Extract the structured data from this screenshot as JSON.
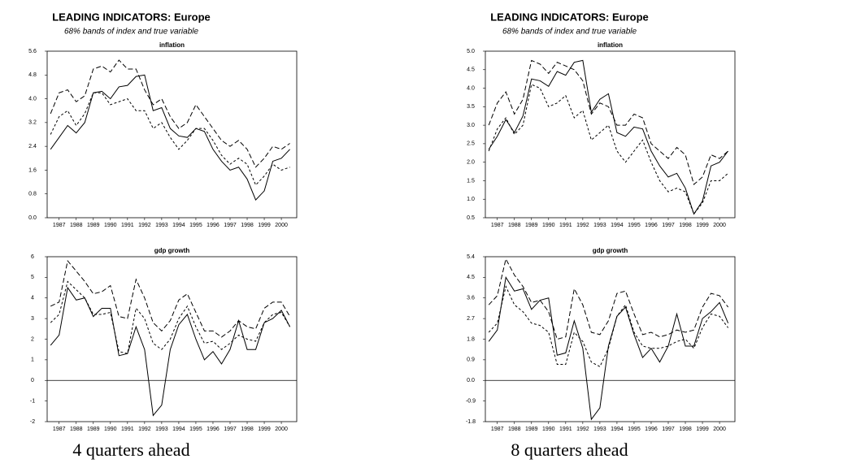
{
  "panels": [
    {
      "title": "LEADING INDICATORS: Europe",
      "subtitle": "68% bands of index and true variable",
      "caption": "4 quarters ahead"
    },
    {
      "title": "LEADING INDICATORS: Europe",
      "subtitle": "68% bands of index and true variable",
      "caption": "8 quarters ahead"
    }
  ],
  "chart_data": [
    {
      "type": "line",
      "title": "inflation",
      "x": [
        1986.5,
        1987,
        1987.5,
        1988,
        1988.5,
        1989,
        1989.5,
        1990,
        1990.5,
        1991,
        1991.5,
        1992,
        1992.5,
        1993,
        1993.5,
        1994,
        1994.5,
        1995,
        1995.5,
        1996,
        1996.5,
        1997,
        1997.5,
        1998,
        1998.5,
        1999,
        1999.5,
        2000,
        2000.5
      ],
      "xlim": [
        1986.3,
        2000.9
      ],
      "xticks": [
        1987,
        1988,
        1989,
        1990,
        1991,
        1992,
        1993,
        1994,
        1995,
        1996,
        1997,
        1998,
        1999,
        2000
      ],
      "ylim": [
        0,
        5.6
      ],
      "yticks": [
        {
          "value": 0,
          "label": "0.0"
        },
        0.8,
        1.6,
        2.4,
        3.2,
        {
          "value": 4,
          "label": "4.0"
        },
        4.8,
        5.6
      ],
      "series": [
        {
          "color": "#000000",
          "dash": "solid",
          "values": [
            2.3,
            2.7,
            3.1,
            2.85,
            3.2,
            4.2,
            4.25,
            4.0,
            4.4,
            4.45,
            4.75,
            4.8,
            3.6,
            3.7,
            3.0,
            2.75,
            2.7,
            3.0,
            2.9,
            2.3,
            1.9,
            1.6,
            1.7,
            1.3,
            0.6,
            0.9,
            1.9,
            2.0,
            2.3
          ]
        },
        {
          "color": "#000000",
          "dash": "long",
          "values": [
            3.5,
            4.2,
            4.3,
            3.9,
            4.1,
            5.0,
            5.1,
            4.9,
            5.3,
            5.0,
            5.0,
            4.3,
            3.8,
            4.0,
            3.4,
            3.0,
            3.2,
            3.8,
            3.4,
            3.0,
            2.6,
            2.4,
            2.6,
            2.3,
            1.7,
            2.0,
            2.4,
            2.3,
            2.5
          ]
        },
        {
          "color": "#000000",
          "dash": "short",
          "values": [
            2.8,
            3.4,
            3.6,
            3.1,
            3.5,
            4.2,
            4.2,
            3.8,
            3.9,
            4.0,
            3.6,
            3.6,
            3.0,
            3.2,
            2.7,
            2.3,
            2.6,
            3.0,
            3.0,
            2.6,
            2.1,
            1.8,
            2.0,
            1.8,
            1.1,
            1.4,
            1.8,
            1.6,
            1.7
          ]
        }
      ]
    },
    {
      "type": "line",
      "title": "gdp growth",
      "x": [
        1986.5,
        1987,
        1987.5,
        1988,
        1988.5,
        1989,
        1989.5,
        1990,
        1990.5,
        1991,
        1991.5,
        1992,
        1992.5,
        1993,
        1993.5,
        1994,
        1994.5,
        1995,
        1995.5,
        1996,
        1996.5,
        1997,
        1997.5,
        1998,
        1998.5,
        1999,
        1999.5,
        2000,
        2000.5
      ],
      "xlim": [
        1986.3,
        2000.9
      ],
      "xticks": [
        1987,
        1988,
        1989,
        1990,
        1991,
        1992,
        1993,
        1994,
        1995,
        1996,
        1997,
        1998,
        1999,
        2000
      ],
      "ylim": [
        -2,
        6
      ],
      "yticks": [
        -2,
        -1,
        0,
        1,
        2,
        3,
        4,
        5,
        6
      ],
      "series": [
        {
          "color": "#000000",
          "dash": "solid",
          "values": [
            1.7,
            2.2,
            4.5,
            3.9,
            4.0,
            3.1,
            3.5,
            3.5,
            1.2,
            1.3,
            2.6,
            1.5,
            -1.7,
            -1.2,
            1.5,
            2.7,
            3.2,
            2.0,
            1.0,
            1.4,
            0.8,
            1.5,
            2.9,
            1.5,
            1.5,
            2.8,
            3.0,
            3.4,
            2.6
          ]
        },
        {
          "color": "#000000",
          "dash": "long",
          "values": [
            3.6,
            3.8,
            5.8,
            5.3,
            4.8,
            4.2,
            4.3,
            4.6,
            3.1,
            3.0,
            4.9,
            4.0,
            2.8,
            2.4,
            2.9,
            3.9,
            4.2,
            3.3,
            2.4,
            2.4,
            2.1,
            2.4,
            2.9,
            2.6,
            2.5,
            3.5,
            3.8,
            3.8,
            3.1
          ]
        },
        {
          "color": "#000000",
          "dash": "short",
          "values": [
            2.8,
            3.2,
            4.8,
            4.4,
            4.0,
            3.2,
            3.2,
            3.3,
            1.4,
            1.3,
            3.5,
            3.0,
            1.8,
            1.5,
            2.0,
            3.0,
            3.6,
            2.6,
            1.8,
            1.9,
            1.5,
            1.8,
            2.2,
            2.0,
            1.9,
            2.8,
            3.2,
            3.3,
            2.6
          ]
        }
      ]
    },
    {
      "type": "line",
      "title": "inflation",
      "x": [
        1986.5,
        1987,
        1987.5,
        1988,
        1988.5,
        1989,
        1989.5,
        1990,
        1990.5,
        1991,
        1991.5,
        1992,
        1992.5,
        1993,
        1993.5,
        1994,
        1994.5,
        1995,
        1995.5,
        1996,
        1996.5,
        1997,
        1997.5,
        1998,
        1998.5,
        1999,
        1999.5,
        2000,
        2000.5
      ],
      "xlim": [
        1986.3,
        2000.9
      ],
      "xticks": [
        1987,
        1988,
        1989,
        1990,
        1991,
        1992,
        1993,
        1994,
        1995,
        1996,
        1997,
        1998,
        1999,
        2000
      ],
      "ylim": [
        0.5,
        5.0
      ],
      "yticks": [
        0.5,
        {
          "value": 1,
          "label": "1.0"
        },
        1.5,
        {
          "value": 2,
          "label": "2.0"
        },
        2.5,
        {
          "value": 3,
          "label": "3.0"
        },
        3.5,
        {
          "value": 4,
          "label": "4.0"
        },
        4.5,
        {
          "value": 5,
          "label": "5.0"
        }
      ],
      "series": [
        {
          "color": "#000000",
          "dash": "solid",
          "values": [
            2.35,
            2.7,
            3.15,
            2.8,
            3.25,
            4.25,
            4.2,
            4.05,
            4.45,
            4.35,
            4.7,
            4.75,
            3.35,
            3.7,
            3.85,
            2.8,
            2.7,
            2.95,
            2.9,
            2.3,
            1.9,
            1.6,
            1.7,
            1.3,
            0.6,
            0.95,
            1.9,
            2.0,
            2.3
          ]
        },
        {
          "color": "#000000",
          "dash": "long",
          "values": [
            3.0,
            3.6,
            3.9,
            3.3,
            3.7,
            4.75,
            4.65,
            4.4,
            4.7,
            4.6,
            4.5,
            4.2,
            3.3,
            3.6,
            3.5,
            3.0,
            3.0,
            3.3,
            3.2,
            2.5,
            2.3,
            2.1,
            2.4,
            2.2,
            1.4,
            1.6,
            2.2,
            2.1,
            2.3
          ]
        },
        {
          "color": "#000000",
          "dash": "short",
          "values": [
            2.3,
            2.9,
            3.2,
            2.75,
            3.0,
            4.1,
            4.0,
            3.5,
            3.6,
            3.8,
            3.2,
            3.4,
            2.6,
            2.8,
            3.0,
            2.3,
            2.0,
            2.3,
            2.6,
            2.0,
            1.5,
            1.2,
            1.3,
            1.2,
            0.6,
            0.9,
            1.5,
            1.5,
            1.7
          ]
        }
      ]
    },
    {
      "type": "line",
      "title": "gdp growth",
      "x": [
        1986.5,
        1987,
        1987.5,
        1988,
        1988.5,
        1989,
        1989.5,
        1990,
        1990.5,
        1991,
        1991.5,
        1992,
        1992.5,
        1993,
        1993.5,
        1994,
        1994.5,
        1995,
        1995.5,
        1996,
        1996.5,
        1997,
        1997.5,
        1998,
        1998.5,
        1999,
        1999.5,
        2000,
        2000.5
      ],
      "xlim": [
        1986.3,
        2000.9
      ],
      "xticks": [
        1987,
        1988,
        1989,
        1990,
        1991,
        1992,
        1993,
        1994,
        1995,
        1996,
        1997,
        1998,
        1999,
        2000
      ],
      "ylim": [
        -1.8,
        5.4
      ],
      "yticks": [
        -1.8,
        -0.9,
        {
          "value": 0,
          "label": "0.0"
        },
        0.9,
        1.8,
        2.7,
        3.6,
        4.5,
        5.4
      ],
      "series": [
        {
          "color": "#000000",
          "dash": "solid",
          "values": [
            1.7,
            2.2,
            4.5,
            3.9,
            4.0,
            3.1,
            3.5,
            3.6,
            1.1,
            1.2,
            2.6,
            1.4,
            -1.7,
            -1.2,
            1.5,
            2.8,
            3.2,
            2.0,
            1.0,
            1.4,
            0.8,
            1.5,
            2.9,
            1.5,
            1.5,
            2.7,
            3.0,
            3.4,
            2.5
          ]
        },
        {
          "color": "#000000",
          "dash": "long",
          "values": [
            3.3,
            3.7,
            5.3,
            4.6,
            4.1,
            3.4,
            3.5,
            3.0,
            1.8,
            1.9,
            4.0,
            3.3,
            2.1,
            2.0,
            2.6,
            3.8,
            3.9,
            2.9,
            2.0,
            2.1,
            1.9,
            2.0,
            2.2,
            2.1,
            2.2,
            3.2,
            3.8,
            3.7,
            3.2
          ]
        },
        {
          "color": "#000000",
          "dash": "short",
          "values": [
            2.1,
            2.5,
            4.1,
            3.3,
            3.0,
            2.5,
            2.4,
            2.1,
            0.7,
            0.7,
            2.1,
            1.7,
            0.8,
            0.6,
            1.4,
            2.8,
            3.3,
            2.1,
            1.5,
            1.4,
            1.4,
            1.5,
            1.7,
            1.8,
            1.4,
            2.3,
            2.9,
            2.8,
            2.3
          ]
        }
      ]
    }
  ]
}
